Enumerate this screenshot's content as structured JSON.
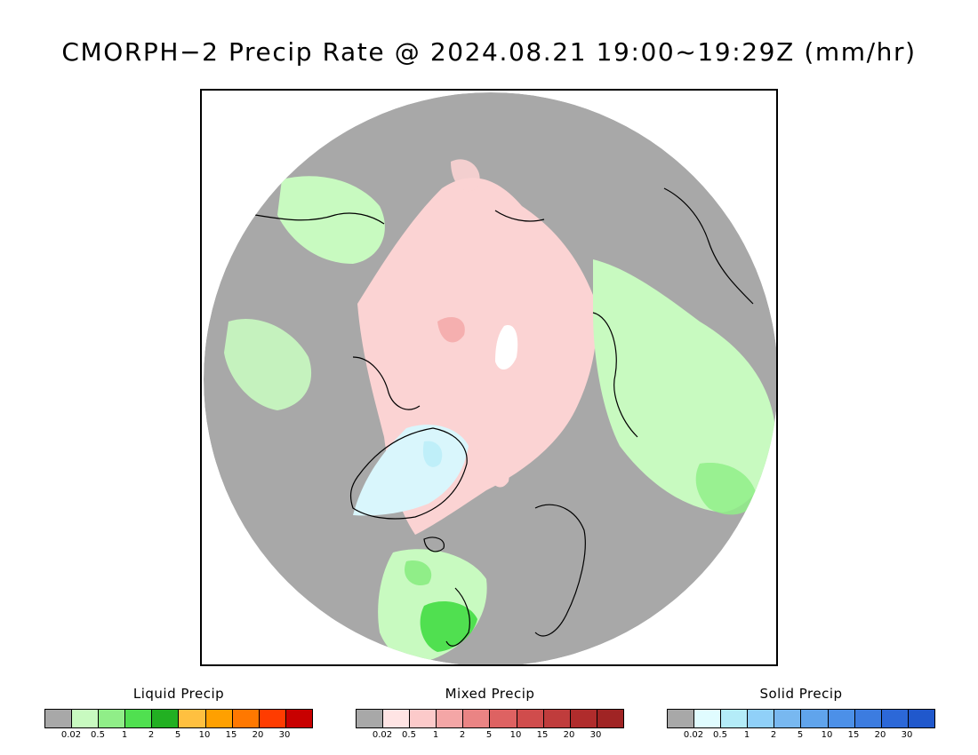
{
  "title": "CMORPH−2 Precip Rate @ 2024.08.21 19:00~19:29Z (mm/hr)",
  "map": {
    "projection": "north polar stereographic",
    "background": "#a8a8a8",
    "coastline_color": "#000000"
  },
  "legends": [
    {
      "title": "Liquid Precip",
      "colors": [
        "#a8a8a8",
        "#c8fac0",
        "#90ee88",
        "#50e050",
        "#22b022",
        "#ffc040",
        "#ffa000",
        "#ff7800",
        "#ff3c00",
        "#c80000"
      ],
      "ticks": [
        "0.02",
        "0.5",
        "1",
        "2",
        "5",
        "10",
        "15",
        "20",
        "30"
      ]
    },
    {
      "title": "Mixed Precip",
      "colors": [
        "#a8a8a8",
        "#ffe4e4",
        "#fccaca",
        "#f4a6a6",
        "#ea8484",
        "#de6262",
        "#d04c4c",
        "#c03c3c",
        "#b02c2c",
        "#a02424"
      ],
      "ticks": [
        "0.02",
        "0.5",
        "1",
        "2",
        "5",
        "10",
        "15",
        "20",
        "30"
      ]
    },
    {
      "title": "Solid Precip",
      "colors": [
        "#a8a8a8",
        "#e0fcff",
        "#b4ecf8",
        "#90d0f8",
        "#78b8f0",
        "#60a4ec",
        "#4c90e8",
        "#3c7ce0",
        "#2c68d8",
        "#2058cc"
      ],
      "ticks": [
        "0.02",
        "0.5",
        "1",
        "2",
        "5",
        "10",
        "15",
        "20",
        "30"
      ]
    }
  ]
}
